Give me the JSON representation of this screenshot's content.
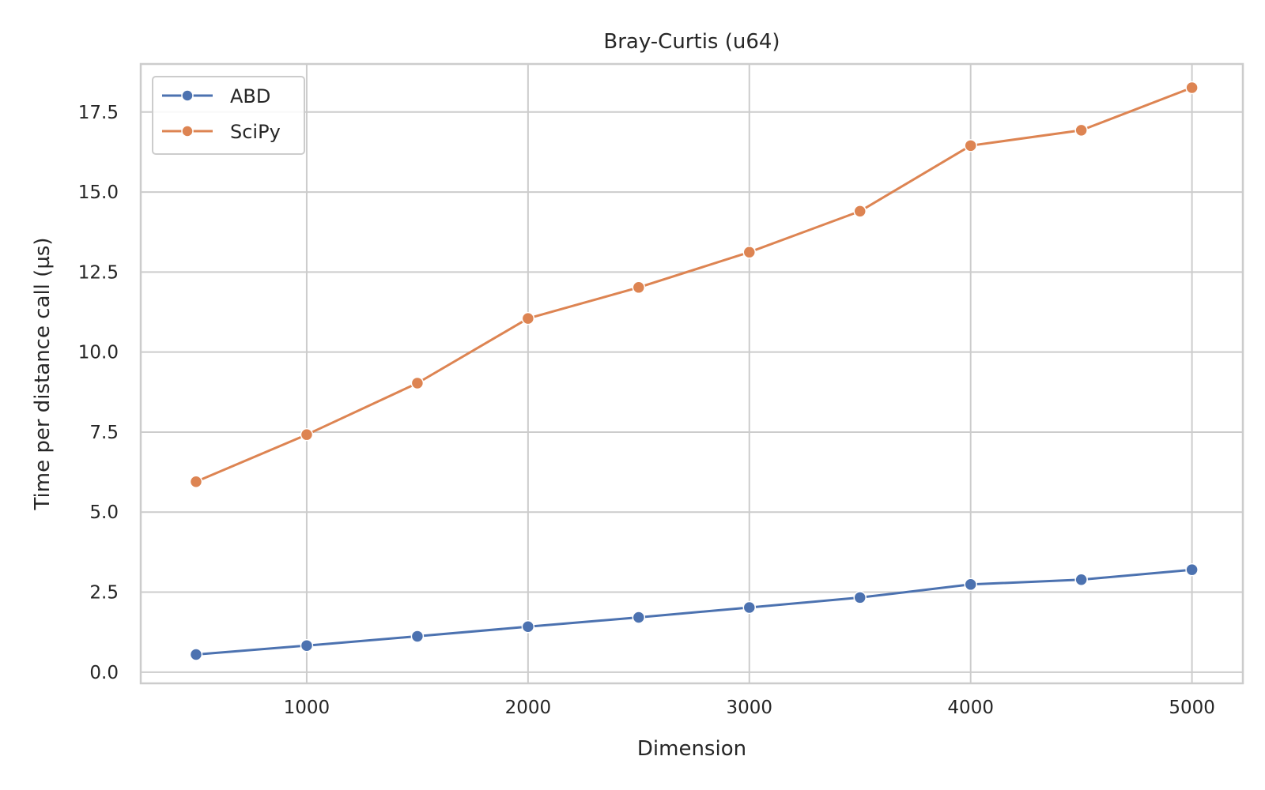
{
  "chart_data": {
    "type": "line",
    "title": "Bray-Curtis (u64)",
    "xlabel": "Dimension",
    "ylabel": "Time per distance call (µs)",
    "x": [
      500,
      1000,
      1500,
      2000,
      2500,
      3000,
      3500,
      4000,
      4500,
      5000
    ],
    "xlim": [
      250,
      5230
    ],
    "ylim": [
      -0.35,
      19.0
    ],
    "xticks": [
      1000,
      2000,
      3000,
      4000,
      5000
    ],
    "yticks": [
      0.0,
      2.5,
      5.0,
      7.5,
      10.0,
      12.5,
      15.0,
      17.5
    ],
    "xtick_labels": [
      "1000",
      "2000",
      "3000",
      "4000",
      "5000"
    ],
    "ytick_labels": [
      "0.0",
      "2.5",
      "5.0",
      "7.5",
      "10.0",
      "12.5",
      "15.0",
      "17.5"
    ],
    "grid": true,
    "legend_position": "top-left",
    "series": [
      {
        "name": "ABD",
        "color": "#4c72b0",
        "values": [
          0.55,
          0.83,
          1.12,
          1.42,
          1.71,
          2.02,
          2.33,
          2.74,
          2.89,
          3.2
        ]
      },
      {
        "name": "SciPy",
        "color": "#dd8452",
        "values": [
          5.95,
          7.42,
          9.03,
          11.05,
          12.02,
          13.12,
          14.4,
          16.45,
          16.93,
          18.26
        ]
      }
    ]
  }
}
